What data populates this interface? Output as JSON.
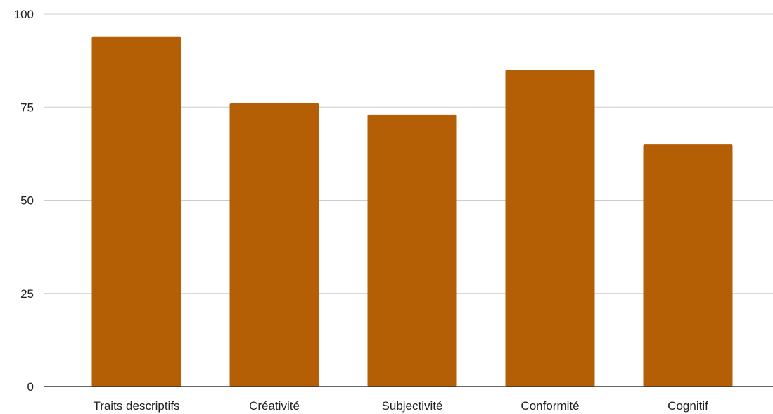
{
  "chart_data": {
    "type": "bar",
    "title": "",
    "xlabel": "",
    "ylabel": "",
    "categories": [
      "Traits descriptifs",
      "Créativité",
      "Subjectivité",
      "Conformité",
      "Cognitif"
    ],
    "values": [
      94,
      76,
      73,
      85,
      65
    ],
    "ylim": [
      0,
      100
    ],
    "yticks": [
      0,
      25,
      50,
      75,
      100
    ],
    "grid": true,
    "legend": "none",
    "colors": {
      "bar": "#b45f06",
      "grid": "#cccccc",
      "axis": "#333333"
    }
  }
}
